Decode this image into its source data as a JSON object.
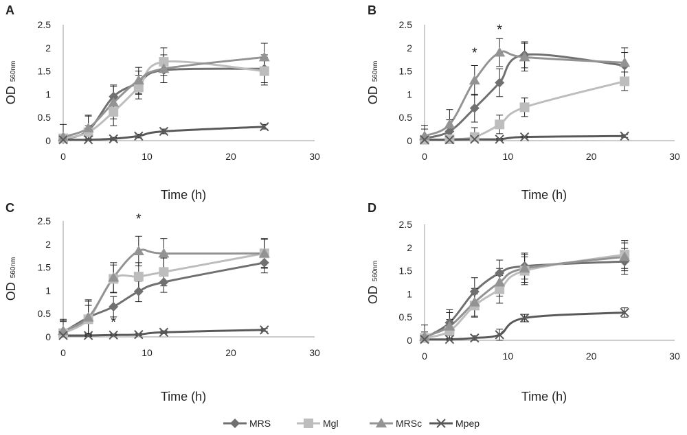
{
  "chart_data": {
    "type": "line",
    "legend": {
      "position": "bottom",
      "entries": [
        {
          "name": "MRS",
          "color": "#707070",
          "marker": "diamond"
        },
        {
          "name": "Mgl",
          "color": "#bdbdbd",
          "marker": "square"
        },
        {
          "name": "MRSc",
          "color": "#939393",
          "marker": "triangle"
        },
        {
          "name": "Mpep",
          "color": "#595959",
          "marker": "x"
        }
      ]
    },
    "panels": [
      {
        "label": "A",
        "xlabel": "Time (h)",
        "ylabel": "OD",
        "ylabel_sub": "560nm",
        "xlim": [
          0,
          30
        ],
        "ylim": [
          0,
          2.5
        ],
        "xticks": [
          "0",
          "10",
          "20",
          "30"
        ],
        "yticks": [
          "0",
          "0.5",
          "1",
          "1.5",
          "2",
          "2.5"
        ],
        "x": [
          0,
          3,
          6,
          9,
          12,
          24
        ],
        "series": [
          {
            "name": "MRS",
            "values": [
              0.03,
              0.22,
              0.95,
              1.25,
              1.52,
              1.55
            ],
            "errors": [
              0.05,
              0.1,
              0.25,
              0.25,
              0.27,
              0.3
            ]
          },
          {
            "name": "Mgl",
            "values": [
              0.05,
              0.18,
              0.62,
              1.15,
              1.7,
              1.5
            ],
            "errors": [
              0.3,
              0.35,
              0.3,
              0.25,
              0.3,
              0.3
            ]
          },
          {
            "name": "MRSc",
            "values": [
              0.08,
              0.27,
              0.82,
              1.3,
              1.55,
              1.8
            ],
            "errors": [
              0.05,
              0.28,
              0.35,
              0.28,
              0.3,
              0.3
            ]
          },
          {
            "name": "Mpep",
            "values": [
              0.02,
              0.02,
              0.04,
              0.1,
              0.2,
              0.3
            ],
            "errors": [
              0.02,
              0.02,
              0.03,
              0.04,
              0.05,
              0.05
            ]
          }
        ],
        "annotations": []
      },
      {
        "label": "B",
        "xlabel": "Time (h)",
        "ylabel": "OD",
        "ylabel_sub": "560nm",
        "xlim": [
          0,
          30
        ],
        "ylim": [
          0,
          2.5
        ],
        "xticks": [
          "0",
          "10",
          "20",
          "30"
        ],
        "yticks": [
          "0",
          "0.5",
          "1",
          "1.5",
          "2",
          "2.5"
        ],
        "x": [
          0,
          3,
          6,
          9,
          12,
          24
        ],
        "series": [
          {
            "name": "MRS",
            "values": [
              0.05,
              0.2,
              0.7,
              1.25,
              1.85,
              1.62
            ],
            "errors": [
              0.28,
              0.25,
              0.3,
              0.3,
              0.28,
              0.28
            ]
          },
          {
            "name": "Mgl",
            "values": [
              0.02,
              0.03,
              0.08,
              0.35,
              0.72,
              1.28
            ],
            "errors": [
              0.02,
              0.05,
              0.2,
              0.2,
              0.2,
              0.2
            ]
          },
          {
            "name": "MRSc",
            "values": [
              0.1,
              0.35,
              1.3,
              1.9,
              1.8,
              1.68
            ],
            "errors": [
              0.15,
              0.32,
              0.32,
              0.3,
              0.3,
              0.32
            ]
          },
          {
            "name": "Mpep",
            "values": [
              0.02,
              0.02,
              0.03,
              0.03,
              0.08,
              0.1
            ],
            "errors": [
              0.02,
              0.02,
              0.02,
              0.02,
              0.02,
              0.03
            ]
          }
        ],
        "annotations": [
          {
            "text": "*",
            "x": 6,
            "y": 1.8
          },
          {
            "text": "*",
            "x": 9,
            "y": 2.3
          }
        ]
      },
      {
        "label": "C",
        "xlabel": "Time (h)",
        "ylabel": "OD",
        "ylabel_sub": "560nm",
        "xlim": [
          0,
          30
        ],
        "ylim": [
          0,
          2.5
        ],
        "xticks": [
          "0",
          "10",
          "20",
          "30"
        ],
        "yticks": [
          "0",
          "0.5",
          "1",
          "1.5",
          "2",
          "2.5"
        ],
        "x": [
          0,
          3,
          6,
          9,
          12,
          24
        ],
        "series": [
          {
            "name": "MRS",
            "values": [
              0.1,
              0.42,
              0.65,
              0.98,
              1.18,
              1.6
            ],
            "errors": [
              0.25,
              0.35,
              0.22,
              0.22,
              0.22,
              0.22
            ]
          },
          {
            "name": "Mgl",
            "values": [
              0.08,
              0.38,
              1.25,
              1.3,
              1.4,
              1.8
            ],
            "errors": [
              0.25,
              0.3,
              0.3,
              0.3,
              0.3,
              0.3
            ]
          },
          {
            "name": "MRSc",
            "values": [
              0.13,
              0.42,
              1.28,
              1.85,
              1.8,
              1.8
            ],
            "errors": [
              0.25,
              0.38,
              0.32,
              0.32,
              0.32,
              0.32
            ]
          },
          {
            "name": "Mpep",
            "values": [
              0.03,
              0.03,
              0.04,
              0.05,
              0.1,
              0.15
            ],
            "errors": [
              0.02,
              0.02,
              0.02,
              0.02,
              0.03,
              0.03
            ]
          }
        ],
        "annotations": [
          {
            "text": "*",
            "x": 9,
            "y": 2.45
          },
          {
            "text": "*",
            "x": 6,
            "y": 0.22
          }
        ]
      },
      {
        "label": "D",
        "xlabel": "Time (h)",
        "ylabel": "OD",
        "ylabel_sub": "560nm",
        "xlim": [
          0,
          30
        ],
        "ylim": [
          0,
          2.5
        ],
        "xticks": [
          "0",
          "10",
          "20",
          "30"
        ],
        "yticks": [
          "0",
          "0.5",
          "1",
          "1.5",
          "2",
          "2.5"
        ],
        "x": [
          0,
          3,
          6,
          9,
          12,
          24
        ],
        "series": [
          {
            "name": "MRS",
            "values": [
              0.05,
              0.38,
              1.05,
              1.45,
              1.6,
              1.7
            ],
            "errors": [
              0.28,
              0.28,
              0.3,
              0.28,
              0.28,
              0.28
            ]
          },
          {
            "name": "Mgl",
            "values": [
              0.05,
              0.2,
              0.75,
              1.1,
              1.5,
              1.85
            ],
            "errors": [
              0.05,
              0.25,
              0.25,
              0.3,
              0.3,
              0.3
            ]
          },
          {
            "name": "MRSc",
            "values": [
              0.08,
              0.3,
              0.82,
              1.25,
              1.55,
              1.8
            ],
            "errors": [
              0.1,
              0.3,
              0.3,
              0.3,
              0.3,
              0.3
            ]
          },
          {
            "name": "Mpep",
            "values": [
              0.02,
              0.02,
              0.05,
              0.12,
              0.48,
              0.6
            ],
            "errors": [
              0.02,
              0.02,
              0.05,
              0.12,
              0.08,
              0.1
            ]
          }
        ],
        "annotations": []
      }
    ]
  }
}
